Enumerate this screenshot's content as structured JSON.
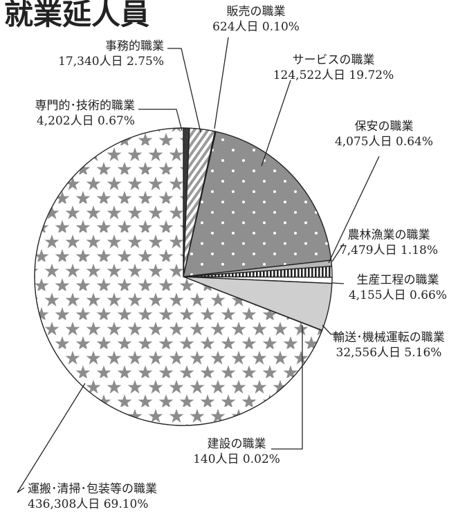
{
  "chart_data": {
    "type": "pie",
    "title": "就業延人員",
    "total_label_unit": "人日",
    "slices": [
      {
        "name": "専門的・技術的職業",
        "label": "専門的･技術的職業",
        "value": 4202,
        "value_label": "4,202人日",
        "percent": 0.67,
        "percent_label": "0.67%",
        "fill": "#3a3a3a",
        "pattern": "solid-dark"
      },
      {
        "name": "事務的職業",
        "label": "事務的職業",
        "value": 17340,
        "value_label": "17,340人日",
        "percent": 2.75,
        "percent_label": "2.75%",
        "fill": "#ffffff",
        "pattern": "diagonal-hatch"
      },
      {
        "name": "販売の職業",
        "label": "販売の職業",
        "value": 624,
        "value_label": "624人日",
        "percent": 0.1,
        "percent_label": "0.10%",
        "fill": "#9a9a9a",
        "pattern": "solid"
      },
      {
        "name": "サービスの職業",
        "label": "サービスの職業",
        "value": 124522,
        "value_label": "124,522人日",
        "percent": 19.72,
        "percent_label": "19.72%",
        "fill": "#8f8f8f",
        "pattern": "white-dots"
      },
      {
        "name": "保安の職業",
        "label": "保安の職業",
        "value": 4075,
        "value_label": "4,075人日",
        "percent": 0.64,
        "percent_label": "0.64%",
        "fill": "#b8b8b8",
        "pattern": "solid"
      },
      {
        "name": "農林漁業の職業",
        "label": "農林漁業の職業",
        "value": 7479,
        "value_label": "7,479人日",
        "percent": 1.18,
        "percent_label": "1.18%",
        "fill": "#ffffff",
        "pattern": "vertical-stripes"
      },
      {
        "name": "生産工程の職業",
        "label": "生産工程の職業",
        "value": 4155,
        "value_label": "4,155人日",
        "percent": 0.66,
        "percent_label": "0.66%",
        "fill": "#ffffff",
        "pattern": "white"
      },
      {
        "name": "輸送・機械運転の職業",
        "label": "輸送･機械運転の職業",
        "value": 32556,
        "value_label": "32,556人日",
        "percent": 5.16,
        "percent_label": "5.16%",
        "fill": "#cfcfcf",
        "pattern": "solid"
      },
      {
        "name": "建設の職業",
        "label": "建設の職業",
        "value": 140,
        "value_label": "140人日",
        "percent": 0.02,
        "percent_label": "0.02%",
        "fill": "#444444",
        "pattern": "solid-dark"
      },
      {
        "name": "運搬・清掃・包装等の職業",
        "label": "運搬･清掃･包装等の職業",
        "value": 436308,
        "value_label": "436,308人日",
        "percent": 69.1,
        "percent_label": "69.10%",
        "fill": "#ffffff",
        "pattern": "stars"
      }
    ],
    "start_angle": "12 o'clock",
    "direction": "clockwise",
    "legend": "none (callout labels)"
  }
}
